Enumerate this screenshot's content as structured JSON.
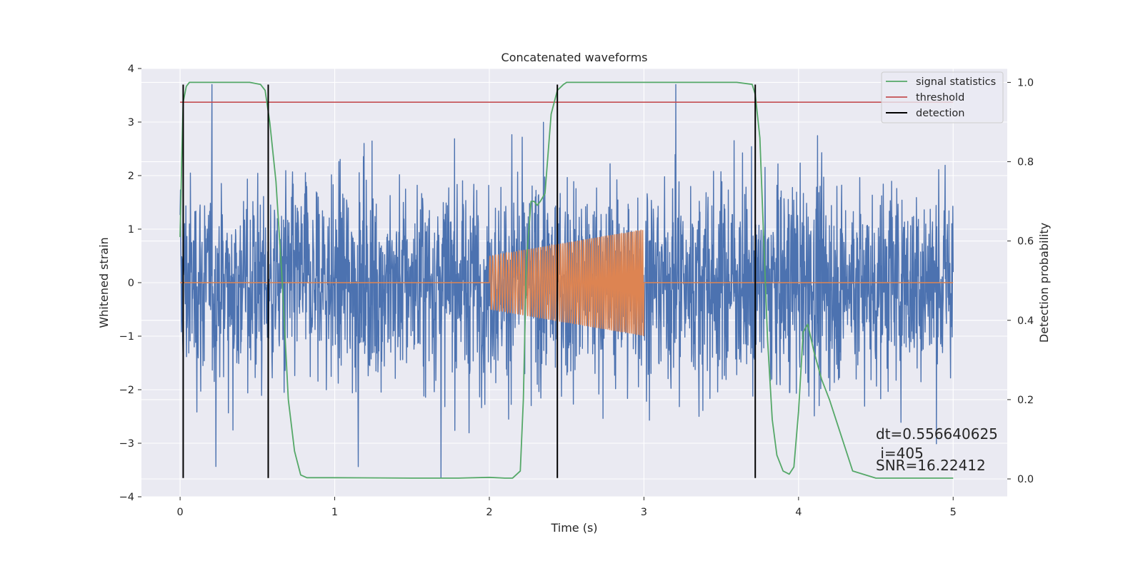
{
  "chart_data": {
    "type": "line",
    "title": "Concatenated waveforms",
    "xlabel": "Time (s)",
    "ylabel": "Whitened strain",
    "ylabel_right": "Detection probability",
    "xlim": [
      -0.25,
      5.35
    ],
    "ylim": [
      -4.0,
      4.0
    ],
    "ylim_right": [
      -0.045,
      1.035
    ],
    "x_ticks": [
      0,
      1,
      2,
      3,
      4,
      5
    ],
    "y_ticks": [
      -4,
      -3,
      -2,
      -1,
      0,
      1,
      2,
      3,
      4
    ],
    "y_tick_labels": [
      "−4",
      "−3",
      "−2",
      "−1",
      "0",
      "1",
      "2",
      "3",
      "4"
    ],
    "y2_ticks": [
      0.0,
      0.2,
      0.4,
      0.6,
      0.8,
      1.0
    ],
    "y2_tick_labels": [
      "0.0",
      "0.2",
      "0.4",
      "0.6",
      "0.8",
      "1.0"
    ],
    "grid": true,
    "legend_position": "top-right",
    "series": [
      {
        "name": "",
        "role": "whitened-strain-noise",
        "axis": "left",
        "color": "#4c72b0",
        "x_range": [
          0,
          5
        ],
        "typical_amplitude": 1.0,
        "approx_extremes": [
          3.7,
          -3.65
        ]
      },
      {
        "name": "",
        "role": "injected-chirp",
        "axis": "left",
        "color": "#dd8452",
        "x_range": [
          0,
          5
        ],
        "chirp_range": [
          2.0,
          3.0
        ],
        "start_amplitude": 0.5,
        "end_amplitude": 1.0
      },
      {
        "name": "signal statistics",
        "axis": "right",
        "color": "#55a868",
        "x": [
          0.0,
          0.01,
          0.02,
          0.04,
          0.06,
          0.1,
          0.2,
          0.45,
          0.52,
          0.55,
          0.58,
          0.62,
          0.66,
          0.7,
          0.74,
          0.78,
          0.82,
          1.0,
          1.5,
          1.8,
          2.0,
          2.1,
          2.15,
          2.2,
          2.22,
          2.24,
          2.27,
          2.29,
          2.31,
          2.33,
          2.36,
          2.38,
          2.4,
          2.44,
          2.48,
          2.5,
          2.55,
          2.6,
          2.8,
          3.2,
          3.6,
          3.7,
          3.72,
          3.75,
          3.78,
          3.8,
          3.83,
          3.86,
          3.9,
          3.94,
          3.97,
          4.0,
          4.03,
          4.06,
          4.1,
          4.15,
          4.2,
          4.25,
          4.3,
          4.35,
          4.5,
          5.0
        ],
        "y": [
          0.61,
          0.8,
          0.95,
          0.99,
          1.0,
          1.0,
          1.0,
          1.0,
          0.995,
          0.98,
          0.9,
          0.75,
          0.5,
          0.2,
          0.07,
          0.01,
          0.003,
          0.003,
          0.002,
          0.002,
          0.004,
          0.002,
          0.002,
          0.02,
          0.2,
          0.55,
          0.7,
          0.7,
          0.69,
          0.7,
          0.72,
          0.82,
          0.92,
          0.98,
          0.995,
          1.0,
          1.0,
          1.0,
          1.0,
          1.0,
          1.0,
          0.995,
          0.97,
          0.86,
          0.55,
          0.35,
          0.15,
          0.06,
          0.02,
          0.012,
          0.03,
          0.17,
          0.37,
          0.39,
          0.32,
          0.25,
          0.2,
          0.14,
          0.08,
          0.02,
          0.002,
          0.002
        ]
      },
      {
        "name": "threshold",
        "axis": "right",
        "color": "#c44e52",
        "x": [
          0,
          5
        ],
        "y": [
          0.95,
          0.95
        ]
      },
      {
        "name": "detection",
        "axis": "left",
        "color": "#000000",
        "x": [
          0.02,
          0.57,
          2.44,
          3.72
        ],
        "y_range": [
          -3.65,
          3.7
        ]
      }
    ],
    "annotations": [
      "dt=0.556640625",
      " i=405",
      "SNR=16.22412"
    ]
  }
}
